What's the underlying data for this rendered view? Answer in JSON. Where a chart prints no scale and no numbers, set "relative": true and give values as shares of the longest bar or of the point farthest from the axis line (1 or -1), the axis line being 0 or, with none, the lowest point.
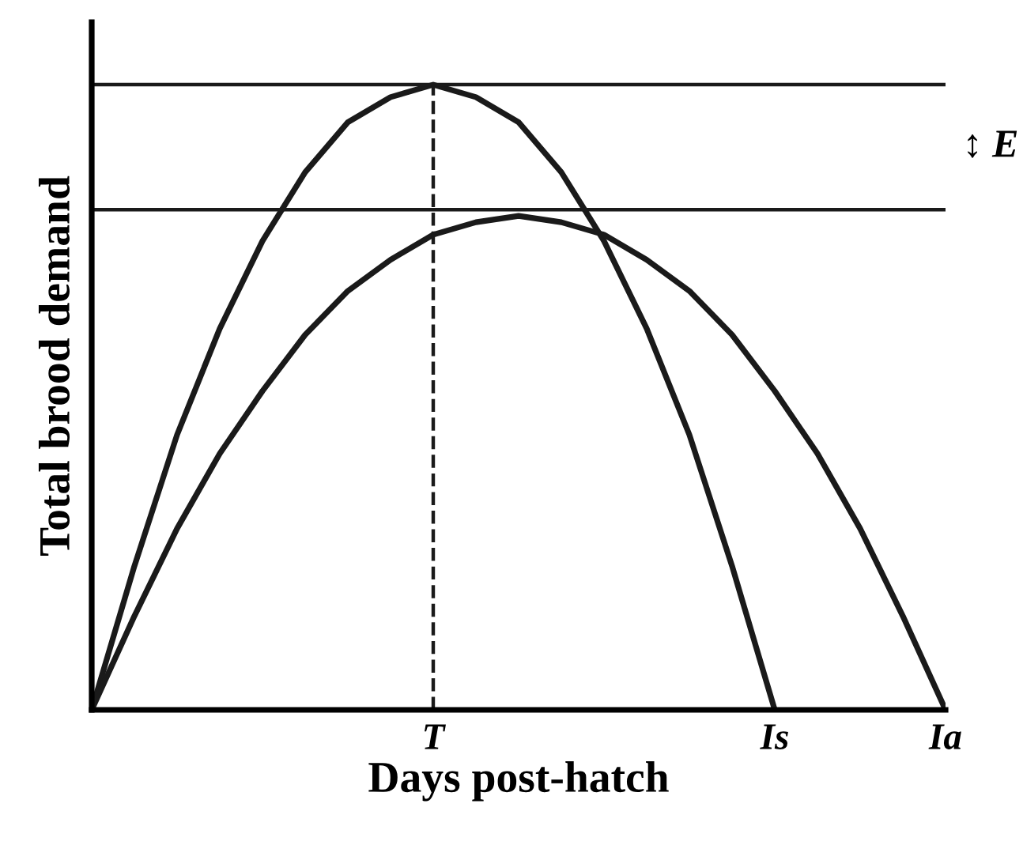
{
  "chart_data": {
    "type": "line",
    "relative": true,
    "xlabel": "Days post-hatch",
    "ylabel": "Total brood demand",
    "categories": [
      null,
      null,
      null,
      null,
      null,
      null,
      null,
      null,
      "T",
      null,
      null,
      null,
      null,
      null,
      null,
      null,
      "Is",
      null,
      null,
      null,
      "Ia"
    ],
    "tick_labels": "x",
    "grid": false,
    "legend": false,
    "marker": "none",
    "line_style": "solid",
    "series": [
      {
        "color": "#1a1a1a",
        "values": [
          0,
          0.23,
          0.44,
          0.61,
          0.75,
          0.86,
          0.94,
          0.98,
          1,
          0.98,
          0.94,
          0.86,
          0.75,
          0.61,
          0.44,
          0.23,
          0,
          null,
          null,
          null,
          null
        ]
      },
      {
        "color": "#1a1a1a",
        "values": [
          0,
          0.15,
          0.29,
          0.41,
          0.51,
          0.6,
          0.67,
          0.72,
          0.76,
          0.78,
          0.79,
          0.78,
          0.76,
          0.72,
          0.67,
          0.6,
          0.51,
          0.41,
          0.29,
          0.15,
          0
        ]
      }
    ],
    "ref_lines": [
      {
        "axis": "y",
        "value": 1,
        "color": "#1a1a1a"
      },
      {
        "axis": "y",
        "value": 0.8,
        "color": "#1a1a1a"
      },
      {
        "axis": "x",
        "value": "T",
        "color": "#1a1a1a",
        "line_style": "dashed"
      }
    ],
    "annotations": [
      "↕ E"
    ]
  }
}
